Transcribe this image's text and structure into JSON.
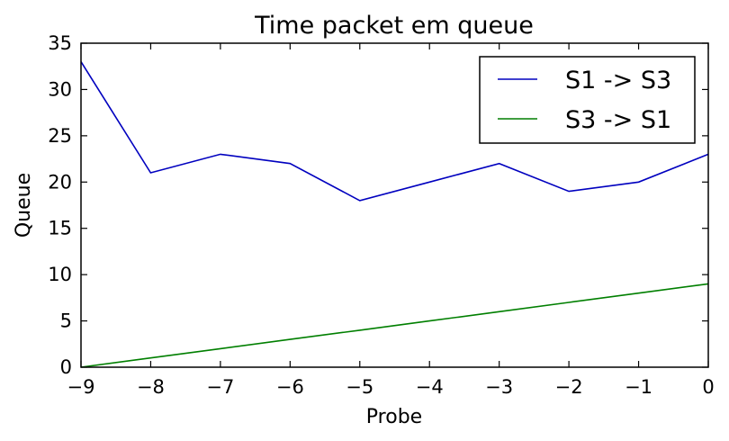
{
  "chart_data": {
    "type": "line",
    "title": "Time packet em queue",
    "xlabel": "Probe",
    "ylabel": "Queue",
    "xlim": [
      -9,
      0
    ],
    "ylim": [
      0,
      35
    ],
    "xticks": [
      -9,
      -8,
      -7,
      -6,
      -5,
      -4,
      -3,
      -2,
      -1,
      0
    ],
    "xtick_labels": [
      "−9",
      "−8",
      "−7",
      "−6",
      "−5",
      "−4",
      "−3",
      "−2",
      "−1",
      "0"
    ],
    "yticks": [
      0,
      5,
      10,
      15,
      20,
      25,
      30,
      35
    ],
    "ytick_labels": [
      "0",
      "5",
      "10",
      "15",
      "20",
      "25",
      "30",
      "35"
    ],
    "grid": false,
    "legend_position": "top-right",
    "x": [
      -9,
      -8,
      -7,
      -6,
      -5,
      -4,
      -3,
      -2,
      -1,
      0
    ],
    "series": [
      {
        "name": "S1 -> S3",
        "color": "#0000bf",
        "values": [
          33,
          21,
          23,
          22,
          18,
          20,
          22,
          19,
          20,
          23
        ]
      },
      {
        "name": "S3 -> S1",
        "color": "#007f00",
        "values": [
          0,
          1,
          2,
          3,
          4,
          5,
          6,
          7,
          8,
          9
        ]
      }
    ]
  }
}
